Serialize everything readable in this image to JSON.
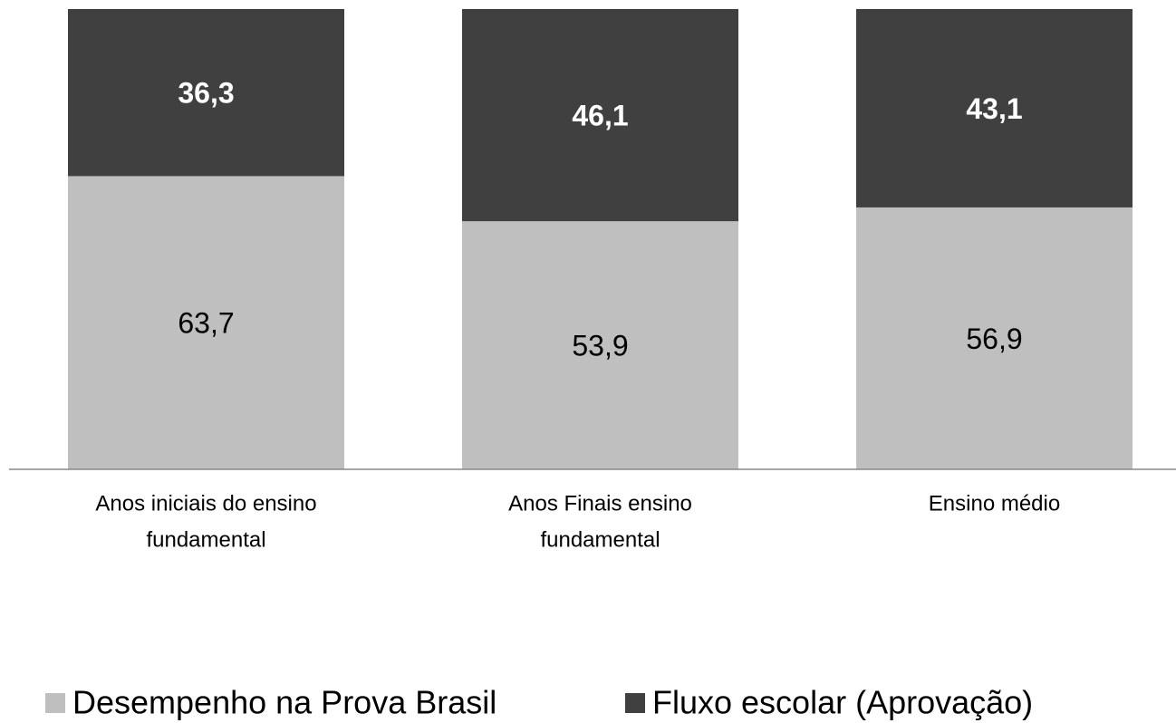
{
  "chart_data": {
    "type": "stacked_bar",
    "categories": [
      [
        "Anos iniciais do ensino",
        "fundamental"
      ],
      [
        "Anos Finais ensino",
        "fundamental"
      ],
      [
        "Ensino médio"
      ]
    ],
    "series": [
      {
        "name": "Desempenho na Prova Brasil",
        "color": "#bfbfbf",
        "values": [
          63.7,
          53.9,
          56.9
        ],
        "value_labels": [
          "63,7",
          "53,9",
          "56,9"
        ]
      },
      {
        "name": "Fluxo escolar (Aprovação)",
        "color": "#404040",
        "values": [
          36.3,
          46.1,
          43.1
        ],
        "value_labels": [
          "36,3",
          "46,1",
          "43,1"
        ]
      }
    ],
    "ylim": [
      0,
      100
    ]
  }
}
